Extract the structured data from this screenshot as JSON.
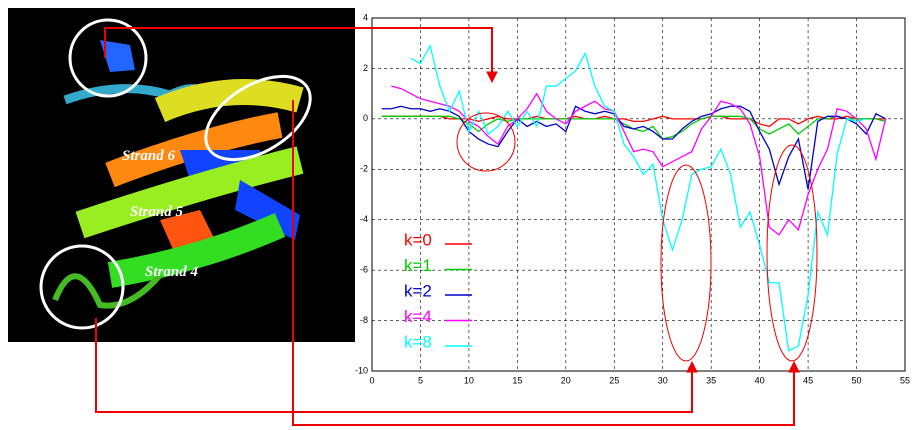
{
  "chart_data": {
    "type": "line",
    "annotations": [
      "Strand 6",
      "Strand 5",
      "Strand 4"
    ],
    "x": [
      1,
      2,
      3,
      4,
      5,
      6,
      7,
      8,
      9,
      10,
      11,
      12,
      13,
      14,
      15,
      16,
      17,
      18,
      19,
      20,
      21,
      22,
      23,
      24,
      25,
      26,
      27,
      28,
      29,
      30,
      31,
      32,
      33,
      34,
      35,
      36,
      37,
      38,
      39,
      40,
      41,
      42,
      43,
      44,
      45,
      46,
      47,
      48,
      49,
      50,
      51,
      52,
      53
    ],
    "series": [
      {
        "name": "k=0",
        "color": "#ff0000",
        "values": [
          0.1,
          0.1,
          0.1,
          0.1,
          0.1,
          0.1,
          0.1,
          0,
          0,
          0,
          -0.1,
          0,
          0.1,
          0,
          0,
          0,
          0.1,
          0,
          0,
          0,
          0.1,
          0,
          0,
          0.1,
          0,
          0,
          -0.1,
          -0.1,
          0,
          0.1,
          0,
          0,
          0,
          0,
          0.1,
          0.1,
          0,
          0,
          0,
          -0.2,
          -0.3,
          0,
          0,
          -0.2,
          0,
          0.1,
          0,
          0,
          0.1,
          0,
          0,
          0,
          0
        ]
      },
      {
        "name": "k=1",
        "color": "#00cc00",
        "values": [
          0.1,
          0.1,
          0.1,
          0.1,
          0.1,
          0.1,
          0.1,
          0.1,
          0,
          -0.2,
          -0.5,
          -0.2,
          0,
          -0.1,
          0,
          0,
          0,
          0,
          0,
          0,
          0,
          0,
          0,
          0,
          0,
          -0.2,
          -0.4,
          -0.5,
          -0.3,
          -0.8,
          -0.7,
          -0.5,
          -0.2,
          0,
          0.1,
          0.1,
          0.1,
          0.1,
          0,
          -0.4,
          -0.6,
          -0.4,
          -0.2,
          -0.6,
          -0.3,
          0,
          0,
          0.1,
          0,
          0,
          0,
          0,
          -0.1
        ]
      },
      {
        "name": "k=2",
        "color": "#0000cc",
        "values": [
          0.4,
          0.4,
          0.5,
          0.4,
          0.4,
          0.3,
          0.4,
          0.3,
          0.1,
          -0.5,
          -0.8,
          -1,
          -1.1,
          -0.5,
          0,
          -0.3,
          -0.1,
          -0.3,
          -0.2,
          -0.5,
          0.5,
          0.3,
          0.2,
          0.3,
          0.2,
          -0.3,
          -0.4,
          -0.3,
          -0.5,
          -0.8,
          -0.8,
          -0.4,
          -0.1,
          0.1,
          0.2,
          0.4,
          0.5,
          0.5,
          0.3,
          -0.5,
          -1.2,
          -2.6,
          -1.5,
          -0.8,
          -2.8,
          -0.1,
          0.1,
          0.1,
          0,
          -0.2,
          -0.6,
          0.2,
          0
        ]
      },
      {
        "name": "k=4",
        "color": "#ff00ff",
        "values": [
          null,
          1.3,
          1.2,
          1.0,
          0.8,
          0.7,
          0.6,
          0.5,
          0.3,
          -0.1,
          -0.3,
          -0.7,
          -1.0,
          -0.3,
          0,
          0.4,
          1.0,
          0.3,
          0,
          -0.2,
          0.3,
          0.5,
          0.7,
          0.4,
          0.3,
          -0.5,
          -1.3,
          -1.2,
          -1.3,
          -1.9,
          -1.7,
          -1.5,
          -1.3,
          -0.4,
          0.1,
          0.7,
          0.6,
          0.4,
          -0.2,
          -1.5,
          -4.3,
          -4.6,
          -4.0,
          -4.4,
          -3.0,
          -2.0,
          -1.2,
          0.4,
          0.3,
          0,
          -0.4,
          -1.6,
          0
        ]
      },
      {
        "name": "k=8",
        "color": "#00ffff",
        "values": [
          null,
          null,
          null,
          2.4,
          2.2,
          2.9,
          1.3,
          0.3,
          1.1,
          -0.5,
          0.3,
          -0.6,
          -0.3,
          0.3,
          -0.3,
          0.3,
          -0.3,
          1.3,
          1.3,
          1.6,
          1.9,
          2.6,
          1.3,
          0.5,
          0.3,
          -1.0,
          -1.5,
          -2.2,
          -1.8,
          -4.0,
          -5.2,
          -4.0,
          -2.2,
          -2.0,
          -1.9,
          -1.2,
          -2.2,
          -4.3,
          -3.7,
          -5.0,
          -6.5,
          -6.5,
          -9.2,
          -9.0,
          -7.0,
          -3.7,
          -4.6,
          -1.4,
          0,
          -0.1,
          0,
          null,
          null
        ]
      }
    ],
    "xlim": [
      0,
      55
    ],
    "xticks": [
      0,
      5,
      10,
      15,
      20,
      25,
      30,
      35,
      40,
      45,
      50,
      55
    ],
    "ylim": [
      -10,
      4
    ],
    "yticks": [
      -10,
      -8,
      -6,
      -4,
      -2,
      0,
      2,
      4
    ],
    "grid": true
  }
}
